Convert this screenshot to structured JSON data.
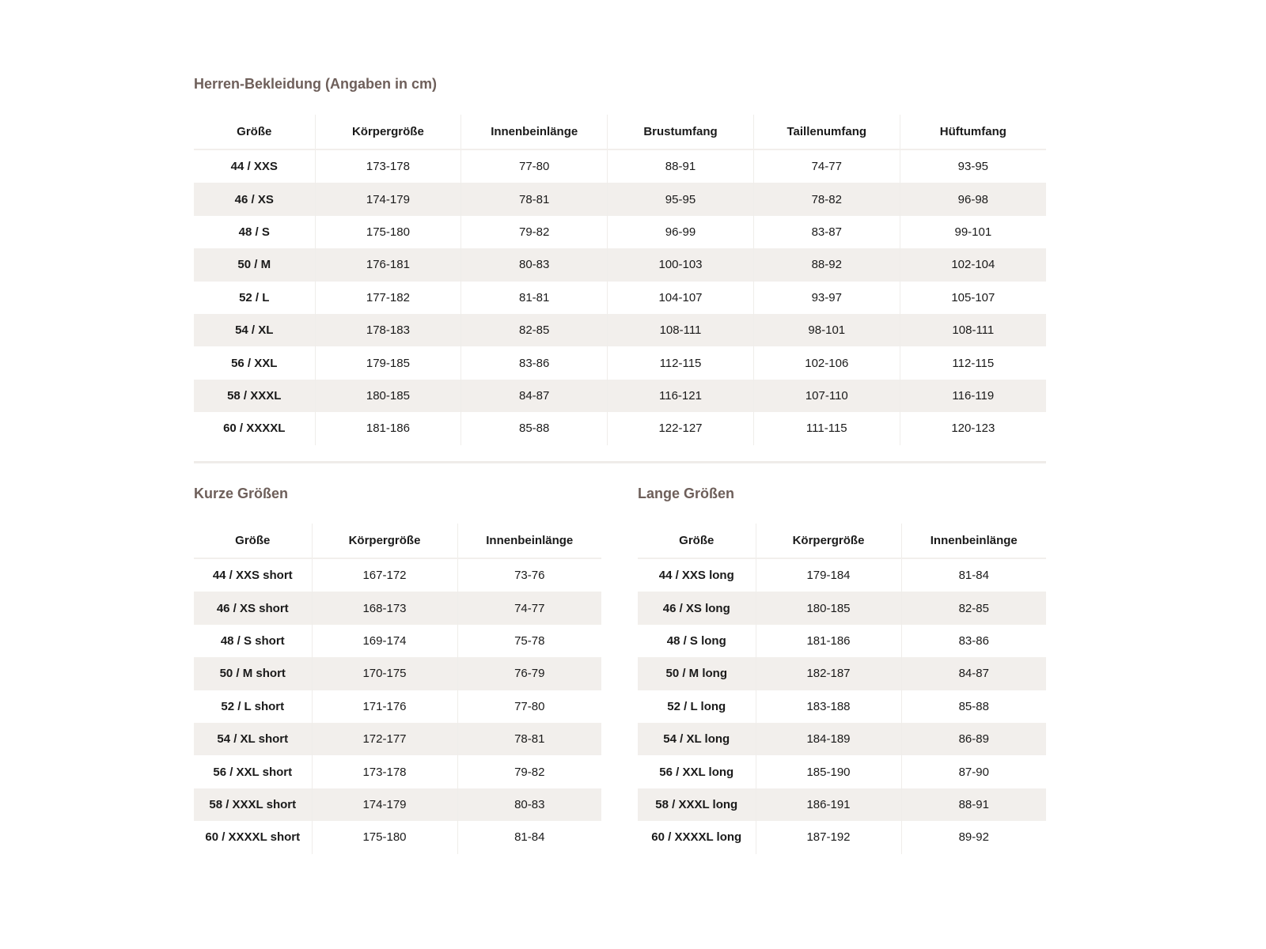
{
  "main": {
    "title": "Herren-Bekleidung (Angaben in cm)",
    "headers": [
      "Größe",
      "Körpergröße",
      "Innenbeinlänge",
      "Brustumfang",
      "Taillenumfang",
      "Hüftumfang"
    ],
    "rows": [
      [
        "44 / XXS",
        "173-178",
        "77-80",
        "88-91",
        "74-77",
        "93-95"
      ],
      [
        "46 / XS",
        "174-179",
        "78-81",
        "95-95",
        "78-82",
        "96-98"
      ],
      [
        "48 / S",
        "175-180",
        "79-82",
        "96-99",
        "83-87",
        "99-101"
      ],
      [
        "50 / M",
        "176-181",
        "80-83",
        "100-103",
        "88-92",
        "102-104"
      ],
      [
        "52 / L",
        "177-182",
        "81-81",
        "104-107",
        "93-97",
        "105-107"
      ],
      [
        "54 / XL",
        "178-183",
        "82-85",
        "108-111",
        "98-101",
        "108-111"
      ],
      [
        "56 / XXL",
        "179-185",
        "83-86",
        "112-115",
        "102-106",
        "112-115"
      ],
      [
        "58 / XXXL",
        "180-185",
        "84-87",
        "116-121",
        "107-110",
        "116-119"
      ],
      [
        "60 / XXXXL",
        "181-186",
        "85-88",
        "122-127",
        "111-115",
        "120-123"
      ]
    ]
  },
  "short": {
    "title": "Kurze Größen",
    "headers": [
      "Größe",
      "Körpergröße",
      "Innenbeinlänge"
    ],
    "rows": [
      [
        "44 / XXS short",
        "167-172",
        "73-76"
      ],
      [
        "46 / XS short",
        "168-173",
        "74-77"
      ],
      [
        "48 / S short",
        "169-174",
        "75-78"
      ],
      [
        "50 / M short",
        "170-175",
        "76-79"
      ],
      [
        "52 / L short",
        "171-176",
        "77-80"
      ],
      [
        "54 / XL short",
        "172-177",
        "78-81"
      ],
      [
        "56 / XXL short",
        "173-178",
        "79-82"
      ],
      [
        "58 / XXXL short",
        "174-179",
        "80-83"
      ],
      [
        "60 / XXXXL short",
        "175-180",
        "81-84"
      ]
    ]
  },
  "long": {
    "title": "Lange Größen",
    "headers": [
      "Größe",
      "Körpergröße",
      "Innenbeinlänge"
    ],
    "rows": [
      [
        "44 / XXS long",
        "179-184",
        "81-84"
      ],
      [
        "46 / XS long",
        "180-185",
        "82-85"
      ],
      [
        "48 / S long",
        "181-186",
        "83-86"
      ],
      [
        "50 / M long",
        "182-187",
        "84-87"
      ],
      [
        "52 / L long",
        "183-188",
        "85-88"
      ],
      [
        "54 / XL long",
        "184-189",
        "86-89"
      ],
      [
        "56 / XXL long",
        "185-190",
        "87-90"
      ],
      [
        "58 / XXXL long",
        "186-191",
        "88-91"
      ],
      [
        "60 / XXXXL long",
        "187-192",
        "89-92"
      ]
    ]
  },
  "colors": {
    "heading": "#6e5f5a",
    "stripe": "#f2efec",
    "text": "#1a1a1a"
  }
}
